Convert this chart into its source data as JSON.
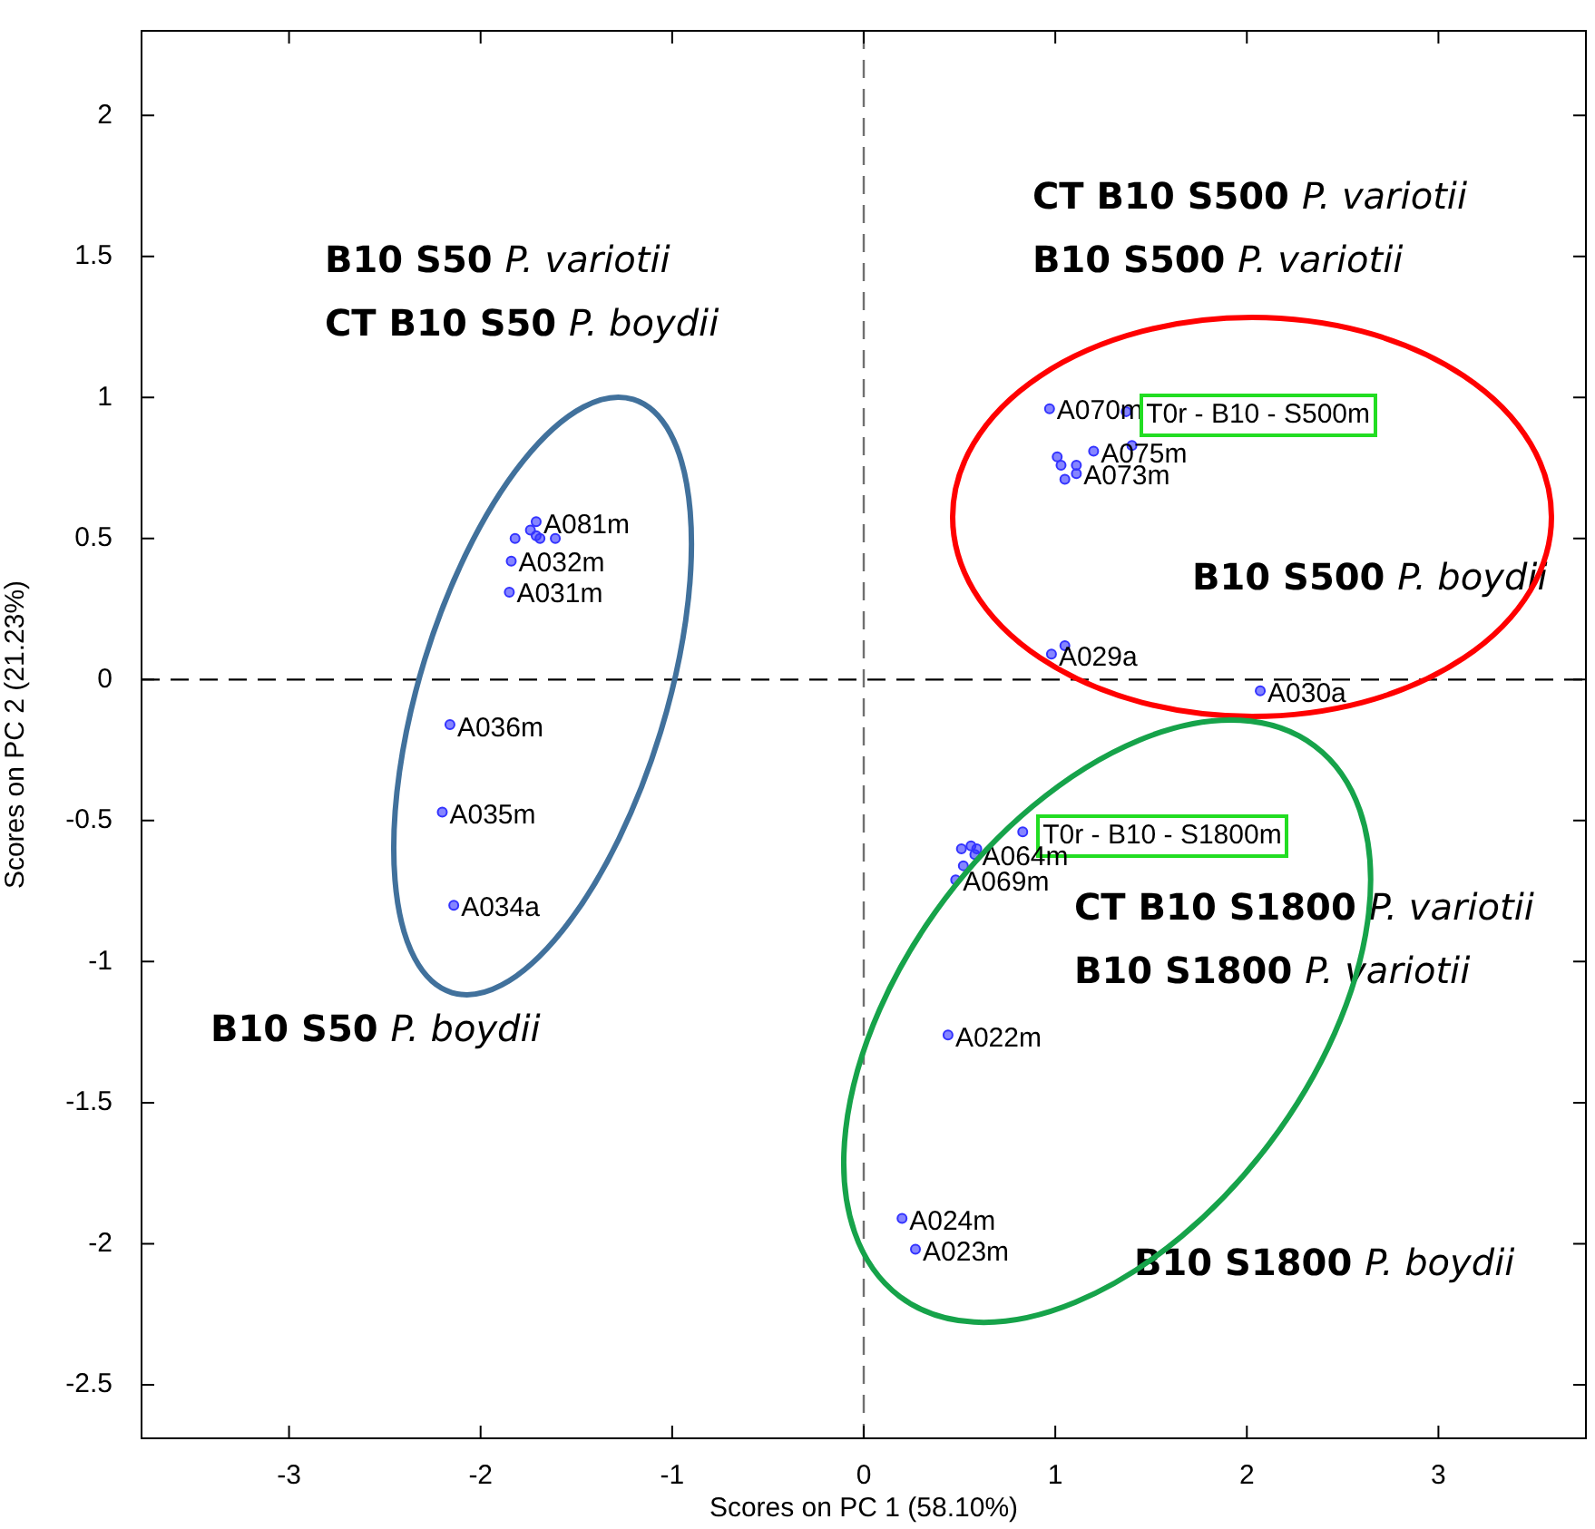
{
  "chart_data": {
    "type": "scatter",
    "xlabel": "Scores on PC 1 (58.10%)",
    "ylabel": "Scores on PC 2 (21.23%)",
    "xlim": [
      -3.77,
      3.77
    ],
    "xticks": [
      -3,
      -2,
      -1,
      0,
      1,
      2,
      3
    ],
    "ylim": [
      -2.69,
      2.3
    ],
    "yticks": [
      -2.5,
      -2,
      -1.5,
      -1,
      -0.5,
      0,
      0.5,
      1,
      1.5,
      2
    ],
    "grid": false,
    "legend": false,
    "marker": "circle",
    "series": [
      {
        "color": "#3333ff",
        "x": [
          -1.71,
          -1.82,
          -1.74,
          -1.71,
          -1.69,
          -1.61,
          -1.84,
          -1.85,
          -2.16,
          -2.2,
          -2.14,
          0.97,
          1.37,
          1.4,
          1.2,
          1.01,
          1.03,
          1.11,
          1.11,
          1.05,
          0.98,
          1.05,
          2.07,
          0.83,
          0.51,
          0.56,
          0.59,
          0.58,
          0.52,
          0.48,
          0.44,
          0.2,
          0.27
        ],
        "values": [
          0.56,
          0.5,
          0.53,
          0.51,
          0.5,
          0.5,
          0.42,
          0.31,
          -0.16,
          -0.47,
          -0.8,
          0.96,
          0.95,
          0.83,
          0.81,
          0.79,
          0.76,
          0.76,
          0.73,
          0.71,
          0.09,
          0.12,
          -0.04,
          -0.54,
          -0.6,
          -0.59,
          -0.6,
          -0.62,
          -0.66,
          -0.71,
          -1.26,
          -1.91,
          -2.02
        ]
      }
    ],
    "ref_lines": [
      {
        "axis": "x",
        "value": 0,
        "line_style": "dashed",
        "color": "#707070"
      },
      {
        "axis": "y",
        "value": 0,
        "line_style": "dashed",
        "color": "#000000"
      }
    ],
    "annotations": [
      "CT B10 S500 P. variotii",
      "B10 S500 P. variotii",
      "B10 S50 P. variotii",
      "CT B10 S50 P. boydii",
      "B10 S500 P. boydii",
      "CT B10 S1800 P. variotii",
      "B10 S1800 P. variotii",
      "B10 S50 P. boydii",
      "B10 S1800 P. boydii",
      {
        "text": "A081m",
        "x": -1.71,
        "y": 0.56
      },
      {
        "text": "A032m",
        "x": -1.84,
        "y": 0.42
      },
      {
        "text": "A031m",
        "x": -1.85,
        "y": 0.31
      },
      {
        "text": "A036m",
        "x": -2.16,
        "y": -0.16
      },
      {
        "text": "A035m",
        "x": -2.2,
        "y": -0.47
      },
      {
        "text": "A034a",
        "x": -2.14,
        "y": -0.8
      },
      {
        "text": "A070m",
        "x": 0.97,
        "y": 0.96
      },
      {
        "text": "T0r - B10 - S500m",
        "x": 1.37,
        "y": 0.95
      },
      {
        "text": "A075m",
        "x": 1.2,
        "y": 0.81
      },
      {
        "text": "A073m",
        "x": 1.11,
        "y": 0.73
      },
      {
        "text": "A029a",
        "x": 0.98,
        "y": 0.09
      },
      {
        "text": "A030a",
        "x": 2.07,
        "y": -0.04
      },
      {
        "text": "T0r - B10 - S1800m",
        "x": 0.83,
        "y": -0.54
      },
      {
        "text": "A064m",
        "x": 0.58,
        "y": -0.62
      },
      {
        "text": "A069m",
        "x": 0.48,
        "y": -0.71
      },
      {
        "text": "A022m",
        "x": 0.44,
        "y": -1.26
      },
      {
        "text": "A024m",
        "x": 0.2,
        "y": -1.91
      },
      {
        "text": "A023m",
        "x": 0.27,
        "y": -2.02
      }
    ]
  }
}
